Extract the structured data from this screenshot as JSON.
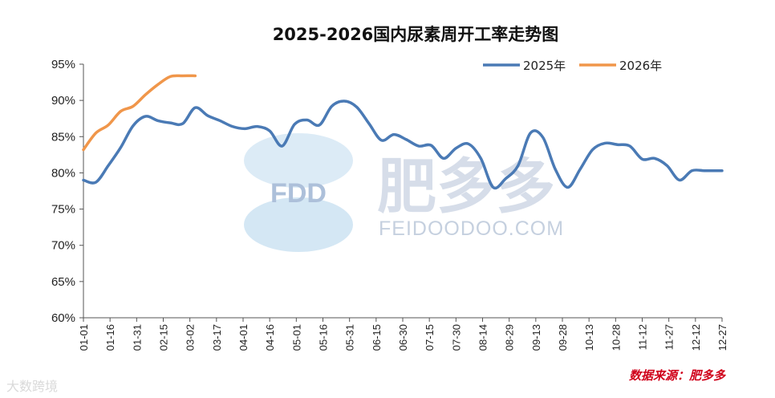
{
  "chart_data": {
    "type": "line",
    "title": "2025-2026国内尿素周开工率走势图",
    "ylim": [
      60,
      95
    ],
    "yticks": [
      "60%",
      "65%",
      "70%",
      "75%",
      "80%",
      "85%",
      "90%",
      "95%"
    ],
    "ytick_values": [
      60,
      65,
      70,
      75,
      80,
      85,
      90,
      95
    ],
    "categories": [
      "01-01",
      "01-16",
      "01-31",
      "02-15",
      "03-02",
      "03-17",
      "04-01",
      "04-16",
      "05-01",
      "05-16",
      "05-31",
      "06-15",
      "06-30",
      "07-15",
      "07-30",
      "08-14",
      "08-29",
      "09-13",
      "09-28",
      "10-13",
      "10-28",
      "11-12",
      "11-27",
      "12-12",
      "12-27"
    ],
    "x_domain": [
      1,
      361
    ],
    "legend_position": "top-right",
    "series": [
      {
        "name": "2025年",
        "color": "#4a7ab5",
        "x": [
          1,
          8,
          15,
          22,
          29,
          36,
          43,
          50,
          57,
          64,
          71,
          78,
          85,
          92,
          99,
          106,
          113,
          120,
          127,
          134,
          141,
          148,
          155,
          162,
          169,
          176,
          183,
          190,
          197,
          204,
          211,
          218,
          225,
          232,
          239,
          246,
          253,
          260,
          267,
          274,
          281,
          288,
          295,
          302,
          309,
          316,
          323,
          330,
          337,
          344,
          351,
          358,
          361
        ],
        "values": [
          79,
          78.7,
          81,
          83.5,
          86.5,
          87.8,
          87.2,
          86.9,
          86.8,
          89,
          87.9,
          87.2,
          86.4,
          86.1,
          86.4,
          85.8,
          83.7,
          86.7,
          87.3,
          86.6,
          89.2,
          89.9,
          89.1,
          86.8,
          84.5,
          85.3,
          84.6,
          83.7,
          83.8,
          82,
          83.4,
          84,
          82,
          78,
          79.2,
          81,
          85.5,
          84.9,
          80.5,
          78,
          80.5,
          83.2,
          84.1,
          83.9,
          83.7,
          81.9,
          82,
          81,
          79,
          80.3,
          80.3,
          80.3,
          80.3
        ]
      },
      {
        "name": "2026年",
        "color": "#f0964a",
        "x": [
          1,
          8,
          15,
          22,
          29,
          36,
          43,
          50,
          57,
          64
        ],
        "values": [
          83.2,
          85.5,
          86.6,
          88.5,
          89.2,
          90.8,
          92.2,
          93.3,
          93.4,
          93.4
        ]
      }
    ],
    "source": "数据来源：肥多多",
    "watermark": {
      "logo": "FDD",
      "brand": "肥多多",
      "url": "FEIDOODOO.COM",
      "corner": "大数跨境"
    }
  }
}
